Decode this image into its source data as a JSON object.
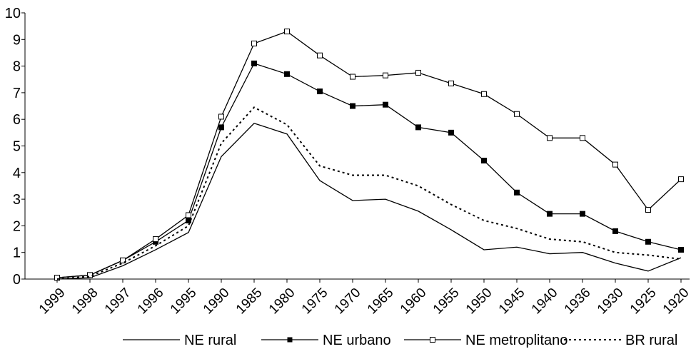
{
  "chart_data": {
    "type": "line",
    "categories": [
      "1999",
      "1998",
      "1997",
      "1996",
      "1995",
      "1990",
      "1985",
      "1980",
      "1975",
      "1970",
      "1965",
      "1960",
      "1955",
      "1950",
      "1945",
      "1940",
      "1936",
      "1930",
      "1925",
      "1920"
    ],
    "series": [
      {
        "name": "NE rural",
        "color": "#000000",
        "marker": "none",
        "dash": false,
        "values": [
          0,
          0.05,
          0.5,
          1.1,
          1.75,
          4.6,
          5.85,
          5.45,
          3.7,
          2.95,
          3.0,
          2.55,
          1.85,
          1.1,
          1.2,
          0.95,
          1.0,
          0.6,
          0.3,
          0.8
        ]
      },
      {
        "name": "NE urbano",
        "color": "#000000",
        "marker": "square-filled",
        "dash": false,
        "values": [
          0.05,
          0.15,
          0.7,
          1.4,
          2.2,
          5.7,
          8.1,
          7.7,
          7.05,
          6.5,
          6.55,
          5.7,
          5.5,
          4.45,
          3.25,
          2.45,
          2.45,
          1.8,
          1.4,
          1.1
        ]
      },
      {
        "name": "NE metroplitano",
        "color": "#000000",
        "marker": "square-open",
        "dash": false,
        "values": [
          0.05,
          0.15,
          0.7,
          1.5,
          2.4,
          6.1,
          8.85,
          9.3,
          8.4,
          7.6,
          7.65,
          7.75,
          7.35,
          6.95,
          6.2,
          5.3,
          5.3,
          4.3,
          2.6,
          3.75
        ]
      },
      {
        "name": "BR rural",
        "color": "#000000",
        "marker": "none",
        "dash": true,
        "values": [
          0,
          0.1,
          0.6,
          1.25,
          2.0,
          5.1,
          6.45,
          5.8,
          4.25,
          3.9,
          3.9,
          3.5,
          2.8,
          2.2,
          1.9,
          1.5,
          1.4,
          1.0,
          0.9,
          0.75
        ]
      }
    ],
    "ylim": [
      0,
      10
    ],
    "yticks": [
      0,
      1,
      2,
      3,
      4,
      5,
      6,
      7,
      8,
      9,
      10
    ],
    "grid": false,
    "legend": "bottom"
  }
}
